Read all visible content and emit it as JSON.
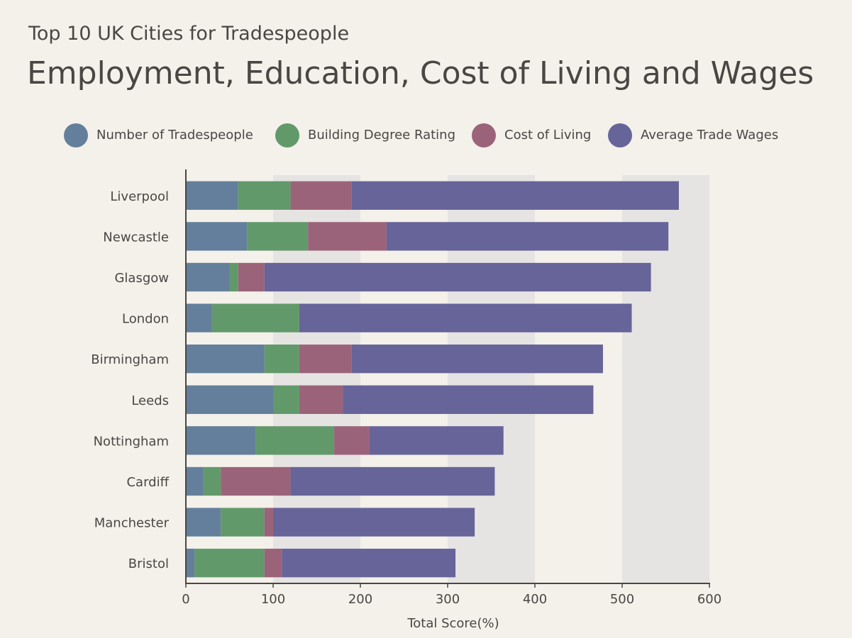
{
  "subtitle": "Top 10 UK Cities for Tradespeople",
  "title": "Employment, Education, Cost of Living and Wages",
  "legend": [
    {
      "label": "Number of Tradespeople",
      "color": "#647f9b"
    },
    {
      "label": "Building Degree Rating",
      "color": "#62996a"
    },
    {
      "label": "Cost of Living",
      "color": "#9b6379"
    },
    {
      "label": "Average Trade Wages",
      "color": "#666498"
    }
  ],
  "chart_data": {
    "type": "bar",
    "orientation": "horizontal",
    "stacked": true,
    "categories": [
      "Liverpool",
      "Newcastle",
      "Glasgow",
      "London",
      "Birmingham",
      "Leeds",
      "Nottingham",
      "Cardiff",
      "Manchester",
      "Bristol"
    ],
    "series": [
      {
        "name": "Number of Tradespeople",
        "color": "#647f9b",
        "values": [
          60,
          70,
          50,
          30,
          90,
          100,
          80,
          20,
          40,
          10
        ]
      },
      {
        "name": "Building Degree Rating",
        "color": "#62996a",
        "values": [
          60,
          70,
          10,
          100,
          40,
          30,
          90,
          20,
          50,
          80
        ]
      },
      {
        "name": "Cost of Living",
        "color": "#9b6379",
        "values": [
          70,
          90,
          30,
          0,
          60,
          50,
          40,
          80,
          10,
          20
        ]
      },
      {
        "name": "Average Trade Wages",
        "color": "#666498",
        "values": [
          375,
          323,
          443,
          381,
          288,
          287,
          154,
          234,
          231,
          199
        ]
      }
    ],
    "xlabel": "Total Score(%)",
    "ylabel": "",
    "xlim": [
      0,
      600
    ],
    "xticks": [
      0,
      100,
      200,
      300,
      400,
      500,
      600
    ],
    "background_bands": true,
    "legend_position": "top"
  }
}
